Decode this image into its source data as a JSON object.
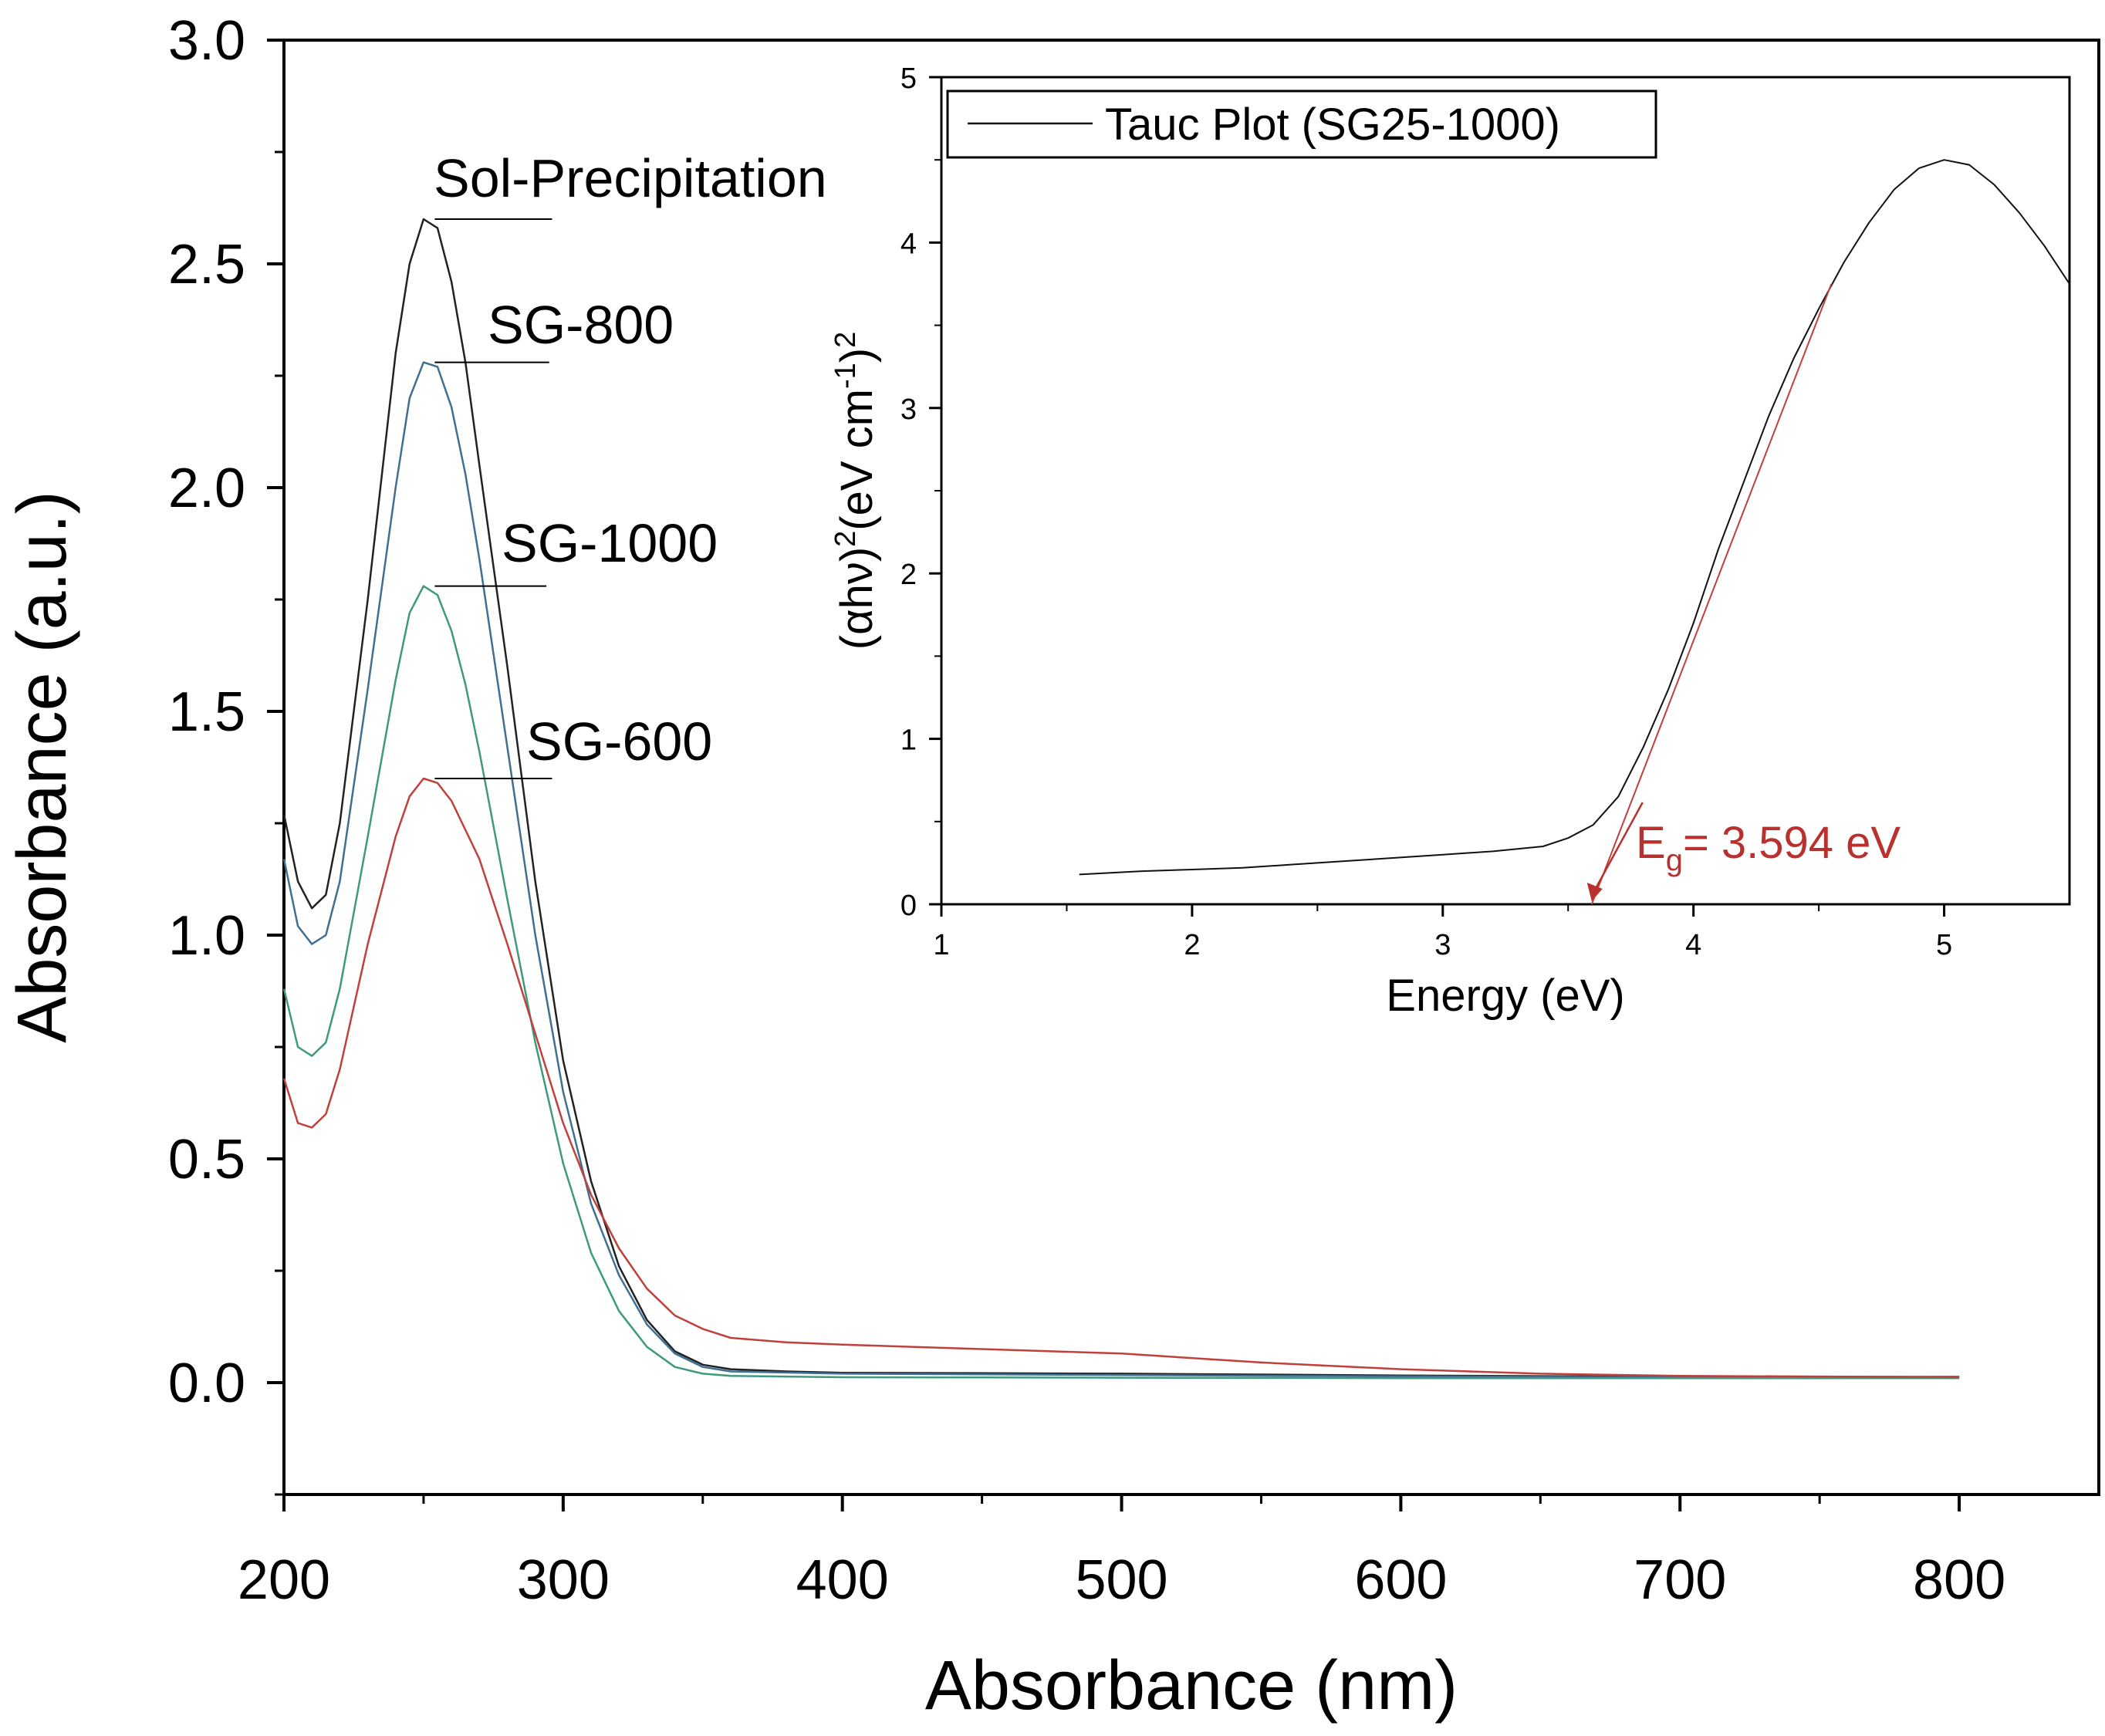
{
  "chart_data": [
    {
      "type": "line",
      "title": "",
      "xlabel": "Absorbance (nm)",
      "ylabel": "Absorbance (a.u.)",
      "xlim": [
        200,
        850
      ],
      "ylim": [
        -0.25,
        3.0
      ],
      "xticks": [
        200,
        300,
        400,
        500,
        600,
        700,
        800
      ],
      "yticks": [
        0.0,
        0.5,
        1.0,
        1.5,
        2.0,
        2.5,
        3.0
      ],
      "x_tick_labels": [
        "200",
        "300",
        "400",
        "500",
        "600",
        "700",
        "800"
      ],
      "y_tick_labels": [
        "0.0",
        "0.5",
        "1.0",
        "1.5",
        "2.0",
        "2.5",
        "3.0"
      ],
      "series": [
        {
          "name": "Sol-Precipitation",
          "color": "#222222",
          "points": [
            [
              200,
              1.27
            ],
            [
              205,
              1.12
            ],
            [
              210,
              1.06
            ],
            [
              215,
              1.09
            ],
            [
              220,
              1.25
            ],
            [
              230,
              1.75
            ],
            [
              240,
              2.3
            ],
            [
              245,
              2.5
            ],
            [
              250,
              2.6
            ],
            [
              255,
              2.58
            ],
            [
              260,
              2.46
            ],
            [
              265,
              2.28
            ],
            [
              270,
              2.05
            ],
            [
              280,
              1.6
            ],
            [
              290,
              1.12
            ],
            [
              300,
              0.72
            ],
            [
              310,
              0.45
            ],
            [
              320,
              0.26
            ],
            [
              330,
              0.14
            ],
            [
              340,
              0.07
            ],
            [
              350,
              0.04
            ],
            [
              360,
              0.03
            ],
            [
              380,
              0.025
            ],
            [
              400,
              0.022
            ],
            [
              500,
              0.02
            ],
            [
              600,
              0.016
            ],
            [
              700,
              0.013
            ],
            [
              800,
              0.013
            ]
          ]
        },
        {
          "name": "SG-800",
          "color": "#3f6f93",
          "points": [
            [
              200,
              1.17
            ],
            [
              205,
              1.02
            ],
            [
              210,
              0.98
            ],
            [
              215,
              1.0
            ],
            [
              220,
              1.12
            ],
            [
              230,
              1.55
            ],
            [
              240,
              2.0
            ],
            [
              245,
              2.2
            ],
            [
              250,
              2.28
            ],
            [
              255,
              2.27
            ],
            [
              260,
              2.18
            ],
            [
              265,
              2.03
            ],
            [
              270,
              1.84
            ],
            [
              280,
              1.42
            ],
            [
              290,
              1.0
            ],
            [
              300,
              0.65
            ],
            [
              310,
              0.4
            ],
            [
              320,
              0.24
            ],
            [
              330,
              0.13
            ],
            [
              340,
              0.065
            ],
            [
              350,
              0.035
            ],
            [
              360,
              0.025
            ],
            [
              400,
              0.02
            ],
            [
              500,
              0.017
            ],
            [
              600,
              0.014
            ],
            [
              700,
              0.012
            ],
            [
              800,
              0.012
            ]
          ]
        },
        {
          "name": "SG-1000",
          "color": "#3d9a7e",
          "points": [
            [
              200,
              0.88
            ],
            [
              205,
              0.75
            ],
            [
              210,
              0.73
            ],
            [
              215,
              0.76
            ],
            [
              220,
              0.88
            ],
            [
              230,
              1.22
            ],
            [
              240,
              1.57
            ],
            [
              245,
              1.72
            ],
            [
              250,
              1.78
            ],
            [
              255,
              1.76
            ],
            [
              260,
              1.68
            ],
            [
              265,
              1.56
            ],
            [
              270,
              1.41
            ],
            [
              280,
              1.08
            ],
            [
              290,
              0.76
            ],
            [
              300,
              0.49
            ],
            [
              310,
              0.29
            ],
            [
              320,
              0.16
            ],
            [
              330,
              0.08
            ],
            [
              340,
              0.035
            ],
            [
              350,
              0.02
            ],
            [
              360,
              0.015
            ],
            [
              400,
              0.012
            ],
            [
              500,
              0.011
            ],
            [
              600,
              0.01
            ],
            [
              700,
              0.01
            ],
            [
              800,
              0.01
            ]
          ]
        },
        {
          "name": "SG-600",
          "color": "#c0403b",
          "points": [
            [
              200,
              0.68
            ],
            [
              205,
              0.58
            ],
            [
              210,
              0.57
            ],
            [
              215,
              0.6
            ],
            [
              220,
              0.7
            ],
            [
              230,
              0.98
            ],
            [
              240,
              1.22
            ],
            [
              245,
              1.31
            ],
            [
              250,
              1.35
            ],
            [
              255,
              1.34
            ],
            [
              260,
              1.3
            ],
            [
              270,
              1.17
            ],
            [
              280,
              0.98
            ],
            [
              290,
              0.78
            ],
            [
              300,
              0.58
            ],
            [
              310,
              0.42
            ],
            [
              320,
              0.3
            ],
            [
              330,
              0.21
            ],
            [
              340,
              0.15
            ],
            [
              350,
              0.12
            ],
            [
              360,
              0.1
            ],
            [
              380,
              0.09
            ],
            [
              400,
              0.085
            ],
            [
              450,
              0.075
            ],
            [
              500,
              0.065
            ],
            [
              550,
              0.045
            ],
            [
              600,
              0.03
            ],
            [
              650,
              0.02
            ],
            [
              700,
              0.015
            ],
            [
              800,
              0.012
            ]
          ]
        }
      ],
      "annotations": [
        {
          "text": "Sol-Precipitation",
          "x": 254,
          "y": 2.6,
          "line_to_x": 296
        },
        {
          "text": "SG-800",
          "x": 254,
          "y": 2.28,
          "line_to_x": 295
        },
        {
          "text": "SG-1000",
          "x": 254,
          "y": 1.78,
          "line_to_x": 294
        },
        {
          "text": "SG-600",
          "x": 254,
          "y": 1.35,
          "line_to_x": 296
        }
      ]
    },
    {
      "type": "line",
      "title": "",
      "xlabel": "Energy (eV)",
      "ylabel": "(αhν)²(eV cm⁻¹)²",
      "ylabel_parts": [
        "(αhν)",
        "2",
        "(eV cm",
        "-1",
        ")",
        "2"
      ],
      "xlim": [
        1,
        5.5
      ],
      "ylim": [
        0,
        5
      ],
      "xticks": [
        1,
        2,
        3,
        4,
        5
      ],
      "yticks": [
        0,
        1,
        2,
        3,
        4,
        5
      ],
      "x_tick_labels": [
        "1",
        "2",
        "3",
        "4",
        "5"
      ],
      "y_tick_labels": [
        "0",
        "1",
        "2",
        "3",
        "4",
        "5"
      ],
      "legend": {
        "label": "Tauc Plot (SG25-1000)",
        "position": "top-left"
      },
      "series": [
        {
          "name": "Tauc Plot (SG25-1000)",
          "color": "#111111",
          "points": [
            [
              1.55,
              0.18
            ],
            [
              1.8,
              0.2
            ],
            [
              2.0,
              0.21
            ],
            [
              2.2,
              0.22
            ],
            [
              2.4,
              0.24
            ],
            [
              2.6,
              0.26
            ],
            [
              2.8,
              0.28
            ],
            [
              3.0,
              0.3
            ],
            [
              3.2,
              0.32
            ],
            [
              3.4,
              0.35
            ],
            [
              3.5,
              0.4
            ],
            [
              3.6,
              0.48
            ],
            [
              3.7,
              0.65
            ],
            [
              3.8,
              0.95
            ],
            [
              3.9,
              1.3
            ],
            [
              4.0,
              1.7
            ],
            [
              4.1,
              2.15
            ],
            [
              4.2,
              2.55
            ],
            [
              4.3,
              2.95
            ],
            [
              4.4,
              3.3
            ],
            [
              4.5,
              3.6
            ],
            [
              4.6,
              3.88
            ],
            [
              4.7,
              4.12
            ],
            [
              4.8,
              4.32
            ],
            [
              4.9,
              4.45
            ],
            [
              5.0,
              4.5
            ],
            [
              5.1,
              4.47
            ],
            [
              5.2,
              4.35
            ],
            [
              5.3,
              4.18
            ],
            [
              5.4,
              3.98
            ],
            [
              5.5,
              3.75
            ]
          ]
        }
      ],
      "fit_line": {
        "color": "#c0403b",
        "points": [
          [
            3.594,
            0.0
          ],
          [
            4.55,
            3.75
          ]
        ]
      },
      "band_gap": {
        "value_ev": 3.594,
        "label_main": "E",
        "label_sub": "g",
        "label_rest": "= 3.594 eV",
        "color": "#b8312f"
      }
    }
  ]
}
